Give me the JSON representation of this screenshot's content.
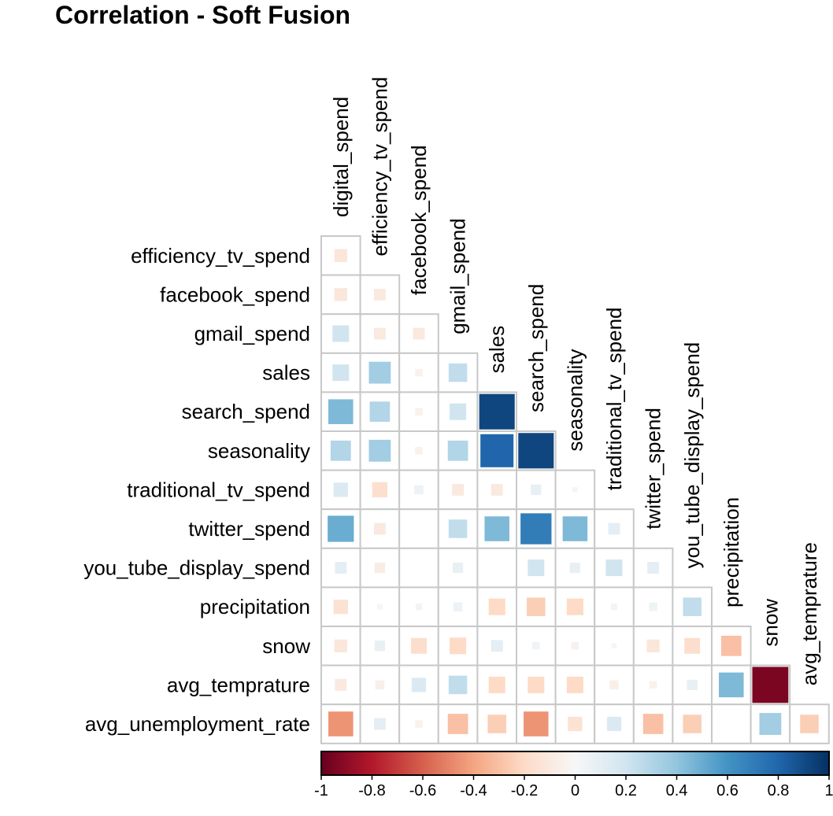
{
  "chart_data": {
    "type": "heatmap",
    "title": "Correlation - Soft Fusion",
    "shape": "lower-triangle square glyphs (size and color ~ correlation)",
    "columns": [
      "digital_spend",
      "efficiency_tv_spend",
      "facebook_spend",
      "gmail_spend",
      "sales",
      "search_spend",
      "seasonality",
      "traditional_tv_spend",
      "twitter_spend",
      "you_tube_display_spend",
      "precipitation",
      "snow",
      "avg_temprature"
    ],
    "rows": [
      "efficiency_tv_spend",
      "facebook_spend",
      "gmail_spend",
      "sales",
      "search_spend",
      "seasonality",
      "traditional_tv_spend",
      "twitter_spend",
      "you_tube_display_spend",
      "precipitation",
      "snow",
      "avg_temprature",
      "avg_unemployment_rate"
    ],
    "values": [
      [
        -0.12
      ],
      [
        -0.12,
        -0.1
      ],
      [
        0.2,
        -0.1,
        -0.1
      ],
      [
        0.2,
        0.35,
        -0.04,
        0.25
      ],
      [
        0.45,
        0.3,
        -0.04,
        0.2,
        0.92
      ],
      [
        0.3,
        0.35,
        -0.04,
        0.3,
        0.8,
        0.92
      ],
      [
        0.15,
        -0.17,
        0.06,
        -0.1,
        -0.1,
        0.08,
        0.02
      ],
      [
        0.5,
        -0.1,
        0.0,
        0.25,
        0.45,
        0.7,
        0.45,
        0.1
      ],
      [
        0.1,
        -0.08,
        0.0,
        0.08,
        0.0,
        0.2,
        0.08,
        0.2,
        0.1
      ],
      [
        -0.15,
        -0.02,
        0.03,
        0.06,
        -0.2,
        -0.25,
        -0.2,
        0.03,
        0.05,
        0.25
      ],
      [
        -0.12,
        0.08,
        -0.18,
        -0.2,
        0.1,
        0.04,
        -0.04,
        0.02,
        -0.12,
        -0.18,
        -0.3
      ],
      [
        -0.1,
        -0.06,
        0.15,
        0.25,
        -0.2,
        -0.2,
        -0.2,
        -0.06,
        -0.04,
        0.08,
        0.45,
        -0.95
      ],
      [
        -0.45,
        0.1,
        -0.04,
        -0.3,
        -0.25,
        -0.45,
        -0.15,
        0.15,
        -0.3,
        -0.25,
        0.0,
        0.35,
        -0.25
      ]
    ],
    "colorbar": {
      "range": [
        -1,
        1
      ],
      "ticks": [
        "-1",
        "-0.8",
        "-0.6",
        "-0.4",
        "-0.2",
        "0",
        "0.2",
        "0.4",
        "0.6",
        "0.8",
        "1"
      ],
      "colors": {
        "neg": "#67001F",
        "neg_mid": "#D6604D",
        "neutral": "#F7F7F7",
        "pos_mid": "#4393C3",
        "pos": "#053061"
      }
    },
    "grid": true
  }
}
